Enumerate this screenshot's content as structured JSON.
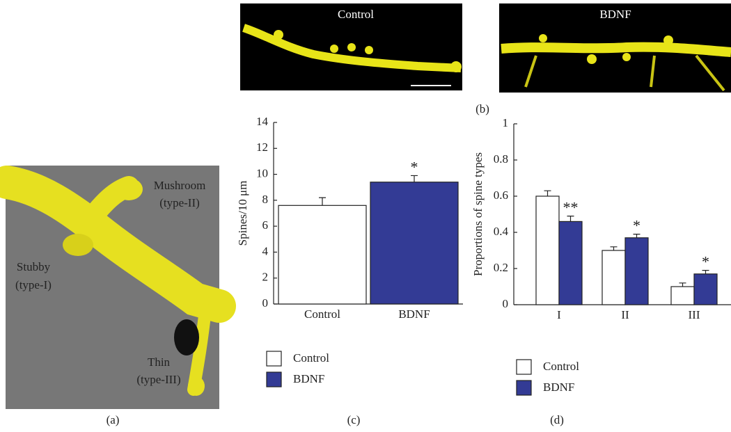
{
  "panel_a": {
    "label": "(a)",
    "annotations": [
      "Mushroom",
      "(type-II)",
      "Stubby",
      "(type-I)",
      "Thin",
      "(type-III)"
    ]
  },
  "panel_b": {
    "label": "(b)",
    "images": [
      "Control",
      "BDNF"
    ]
  },
  "chart_data": [
    {
      "type": "bar",
      "panel_label": "(c)",
      "ylabel": "Spines/10 μm",
      "categories": [
        "Control",
        "BDNF"
      ],
      "series": [
        {
          "name": "Control",
          "color": "#ffffff",
          "values": [
            7.6,
            null
          ],
          "errors": [
            0.6,
            null
          ],
          "significance": [
            null,
            null
          ]
        },
        {
          "name": "BDNF",
          "color": "#333b95",
          "values": [
            null,
            9.4
          ],
          "errors": [
            null,
            0.5
          ],
          "significance": [
            null,
            "*"
          ]
        }
      ],
      "ylim": [
        0,
        14
      ],
      "yticks": [
        0,
        2,
        4,
        6,
        8,
        10,
        12,
        14
      ]
    },
    {
      "type": "bar",
      "panel_label": "(d)",
      "ylabel": "Proportions of spine types",
      "categories": [
        "I",
        "II",
        "III"
      ],
      "series": [
        {
          "name": "Control",
          "color": "#ffffff",
          "values": [
            0.6,
            0.3,
            0.1
          ],
          "errors": [
            0.03,
            0.02,
            0.02
          ],
          "significance": [
            null,
            null,
            null
          ]
        },
        {
          "name": "BDNF",
          "color": "#333b95",
          "values": [
            0.46,
            0.37,
            0.17
          ],
          "errors": [
            0.03,
            0.02,
            0.02
          ],
          "significance": [
            "**",
            "*",
            "*"
          ]
        }
      ],
      "ylim": [
        0,
        1
      ],
      "yticks": [
        0,
        0.2,
        0.4,
        0.6,
        0.8,
        1
      ]
    }
  ]
}
